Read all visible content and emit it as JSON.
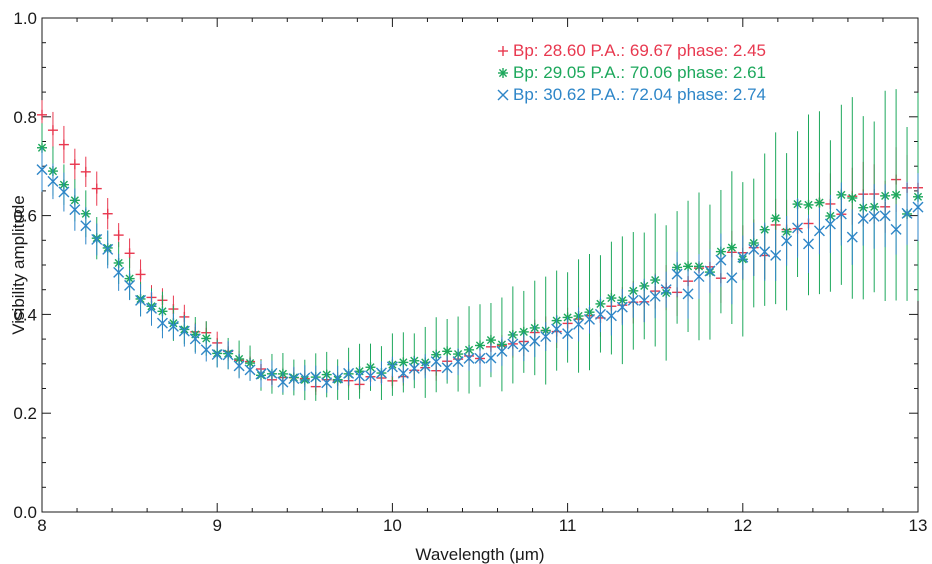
{
  "chart_data": {
    "type": "scatter",
    "title": "",
    "xlabel": "Wavelength (μm)",
    "ylabel": "Visibility amplitude",
    "xlim": [
      8,
      13
    ],
    "ylim": [
      0.0,
      1.0
    ],
    "xticks": [
      8,
      9,
      10,
      11,
      12,
      13
    ],
    "yticks": [
      0.0,
      0.2,
      0.4,
      0.6,
      0.8,
      1.0
    ],
    "xtick_labels": [
      "8",
      "9",
      "10",
      "11",
      "12",
      "13"
    ],
    "ytick_labels": [
      "0.0",
      "0.2",
      "0.4",
      "0.6",
      "0.8",
      "1.0"
    ],
    "legend_position": "top-right",
    "grid": false,
    "error_bars": true,
    "series": [
      {
        "legend": "Bp: 28.60 P.A.: 69.67 phase: 2.45",
        "color": "#e8384f",
        "marker": "plus",
        "anchors": [
          [
            8.0,
            0.8
          ],
          [
            8.3,
            0.66
          ],
          [
            8.6,
            0.45
          ],
          [
            9.0,
            0.34
          ],
          [
            9.3,
            0.275
          ],
          [
            9.6,
            0.262
          ],
          [
            10.0,
            0.27
          ],
          [
            10.5,
            0.32
          ],
          [
            11.0,
            0.38
          ],
          [
            11.5,
            0.44
          ],
          [
            12.0,
            0.52
          ],
          [
            12.5,
            0.62
          ],
          [
            13.0,
            0.66
          ]
        ],
        "err_anchors": [
          [
            8.0,
            0.035
          ],
          [
            9.0,
            0.02
          ],
          [
            10.0,
            0.015
          ],
          [
            11.0,
            0.03
          ],
          [
            12.0,
            0.05
          ],
          [
            13.0,
            0.06
          ]
        ]
      },
      {
        "legend": "Bp: 29.05 P.A.: 70.06 phase: 2.61",
        "color": "#1da85c",
        "marker": "asterisk",
        "anchors": [
          [
            8.0,
            0.73
          ],
          [
            8.3,
            0.57
          ],
          [
            8.6,
            0.42
          ],
          [
            9.0,
            0.33
          ],
          [
            9.3,
            0.277
          ],
          [
            9.6,
            0.27
          ],
          [
            10.0,
            0.295
          ],
          [
            10.5,
            0.335
          ],
          [
            11.0,
            0.39
          ],
          [
            11.5,
            0.465
          ],
          [
            12.0,
            0.53
          ],
          [
            12.3,
            0.61
          ],
          [
            12.5,
            0.625
          ],
          [
            13.0,
            0.63
          ]
        ],
        "err_anchors": [
          [
            8.0,
            0.045
          ],
          [
            9.0,
            0.03
          ],
          [
            9.5,
            0.04
          ],
          [
            10.0,
            0.055
          ],
          [
            10.5,
            0.08
          ],
          [
            11.0,
            0.1
          ],
          [
            11.5,
            0.12
          ],
          [
            12.0,
            0.14
          ],
          [
            12.5,
            0.17
          ],
          [
            13.0,
            0.2
          ]
        ]
      },
      {
        "legend": "Bp: 30.62 P.A.: 72.04 phase: 2.74",
        "color": "#2e86c8",
        "marker": "cross",
        "anchors": [
          [
            8.0,
            0.7
          ],
          [
            8.3,
            0.56
          ],
          [
            8.6,
            0.41
          ],
          [
            9.0,
            0.32
          ],
          [
            9.3,
            0.272
          ],
          [
            9.6,
            0.268
          ],
          [
            10.0,
            0.285
          ],
          [
            10.5,
            0.31
          ],
          [
            11.0,
            0.37
          ],
          [
            11.5,
            0.44
          ],
          [
            12.0,
            0.51
          ],
          [
            12.5,
            0.58
          ],
          [
            13.0,
            0.6
          ]
        ],
        "err_anchors": [
          [
            8.0,
            0.04
          ],
          [
            9.0,
            0.025
          ],
          [
            10.0,
            0.02
          ],
          [
            11.0,
            0.03
          ],
          [
            12.0,
            0.05
          ],
          [
            13.0,
            0.06
          ]
        ]
      }
    ]
  }
}
